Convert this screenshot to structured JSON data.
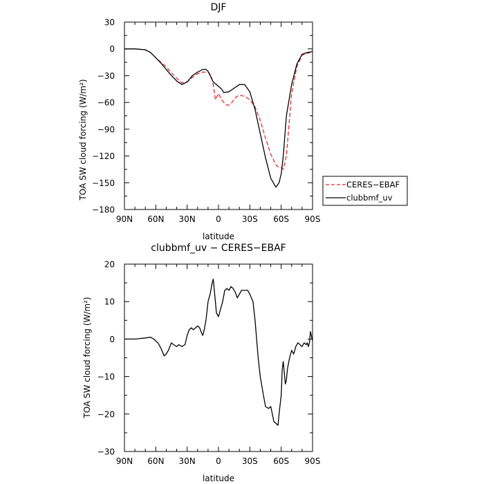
{
  "chart_data": [
    {
      "type": "line",
      "title": "DJF",
      "xlabel": "latitude",
      "ylabel": "TOA SW cloud forcing (W/m²)",
      "xlim": [
        90,
        -90
      ],
      "ylim": [
        -180,
        30
      ],
      "xticks": [
        90,
        60,
        30,
        0,
        -30,
        -60,
        -90
      ],
      "xtick_labels": [
        "90N",
        "60N",
        "30N",
        "0",
        "30S",
        "60S",
        "90S"
      ],
      "yticks": [
        30,
        0,
        -30,
        -60,
        -90,
        -120,
        -150,
        -180
      ],
      "ytick_labels": [
        "30",
        "0",
        "−30",
        "−60",
        "−90",
        "−120",
        "−150",
        "−180"
      ],
      "legend": {
        "placement": "right-outside"
      },
      "series": [
        {
          "name": "CERES−EBAF",
          "color": "#e8262b",
          "dash": "dashed",
          "x": [
            90,
            80,
            70,
            65,
            60,
            55,
            50,
            45,
            40,
            35,
            30,
            25,
            20,
            15,
            10,
            7,
            5,
            3,
            0,
            -3,
            -5,
            -8,
            -10,
            -13,
            -15,
            -18,
            -20,
            -25,
            -30,
            -35,
            -40,
            -45,
            -50,
            -55,
            -57,
            -60,
            -62,
            -65,
            -70,
            -75,
            -80,
            -85,
            -90
          ],
          "y": [
            0,
            0,
            -1,
            -4,
            -10,
            -15,
            -20,
            -27,
            -33,
            -38,
            -37,
            -32,
            -28,
            -26,
            -26,
            -30,
            -40,
            -57,
            -50,
            -57,
            -60,
            -63,
            -63,
            -60,
            -56,
            -53,
            -52,
            -53,
            -57,
            -65,
            -80,
            -100,
            -118,
            -130,
            -132,
            -133,
            -135,
            -120,
            -50,
            -20,
            -7,
            -5,
            -3
          ]
        },
        {
          "name": "clubbmf_uv",
          "color": "#000000",
          "dash": "solid",
          "x": [
            90,
            80,
            70,
            65,
            60,
            55,
            50,
            45,
            40,
            35,
            30,
            25,
            20,
            15,
            12,
            10,
            8,
            5,
            2,
            0,
            -3,
            -5,
            -10,
            -15,
            -20,
            -25,
            -30,
            -35,
            -40,
            -45,
            -50,
            -55,
            -58,
            -60,
            -62,
            -65,
            -70,
            -75,
            -80,
            -85,
            -90
          ],
          "y": [
            0,
            0,
            -1,
            -4,
            -10,
            -16,
            -23,
            -30,
            -36,
            -40,
            -37,
            -30,
            -26,
            -23,
            -23,
            -25,
            -30,
            -37,
            -40,
            -42,
            -45,
            -49,
            -48,
            -44,
            -40,
            -40,
            -48,
            -68,
            -95,
            -122,
            -145,
            -155,
            -150,
            -140,
            -120,
            -75,
            -40,
            -17,
            -6,
            -4,
            -3
          ]
        }
      ]
    },
    {
      "type": "line",
      "title": "clubbmf_uv − CERES−EBAF",
      "xlabel": "latitude",
      "ylabel": "TOA SW cloud forcing (W/m²)",
      "xlim": [
        90,
        -90
      ],
      "ylim": [
        -30,
        20
      ],
      "xticks": [
        90,
        60,
        30,
        0,
        -30,
        -60,
        -90
      ],
      "xtick_labels": [
        "90N",
        "60N",
        "30N",
        "0",
        "30S",
        "60S",
        "90S"
      ],
      "yticks": [
        20,
        10,
        0,
        -10,
        -20,
        -30
      ],
      "ytick_labels": [
        "20",
        "10",
        "0",
        "−10",
        "−20",
        "−30"
      ],
      "series": [
        {
          "color": "#000000",
          "dash": "solid",
          "x": [
            90,
            80,
            70,
            65,
            62,
            60,
            58,
            55,
            52,
            50,
            48,
            45,
            43,
            40,
            38,
            35,
            32,
            30,
            28,
            26,
            24,
            22,
            20,
            18,
            16,
            15,
            14,
            12,
            10,
            8,
            6,
            5,
            4,
            2,
            0,
            -2,
            -4,
            -6,
            -8,
            -10,
            -12,
            -14,
            -16,
            -18,
            -20,
            -22,
            -24,
            -26,
            -28,
            -30,
            -33,
            -35,
            -38,
            -40,
            -43,
            -45,
            -48,
            -50,
            -53,
            -55,
            -57,
            -58,
            -60,
            -61,
            -62,
            -63,
            -64,
            -65,
            -66,
            -68,
            -70,
            -72,
            -74,
            -76,
            -78,
            -80,
            -82,
            -84,
            -85,
            -86,
            -87,
            -88,
            -90
          ],
          "y": [
            0,
            0,
            0.3,
            0.5,
            0,
            -0.5,
            -1,
            -2.5,
            -4.5,
            -4,
            -3,
            -1,
            -1.5,
            -2,
            -1.5,
            -2,
            -1.5,
            1,
            2.5,
            3,
            2.5,
            3,
            3.5,
            3,
            1.5,
            1,
            2,
            5,
            10,
            12,
            15,
            16,
            13,
            7,
            6,
            8,
            10,
            13,
            13.5,
            13,
            14,
            13.5,
            12.5,
            11,
            12,
            13,
            13,
            13,
            13,
            12,
            10,
            5,
            -5,
            -10,
            -15,
            -18,
            -18.5,
            -18,
            -22,
            -22.5,
            -23,
            -20,
            -15,
            -8,
            -6,
            -9,
            -12,
            -11,
            -8,
            -5,
            -3,
            -4,
            -2,
            -1,
            -1.5,
            -2,
            -1,
            -1.5,
            -1,
            -2,
            -1,
            2,
            -0.5
          ]
        }
      ]
    }
  ]
}
